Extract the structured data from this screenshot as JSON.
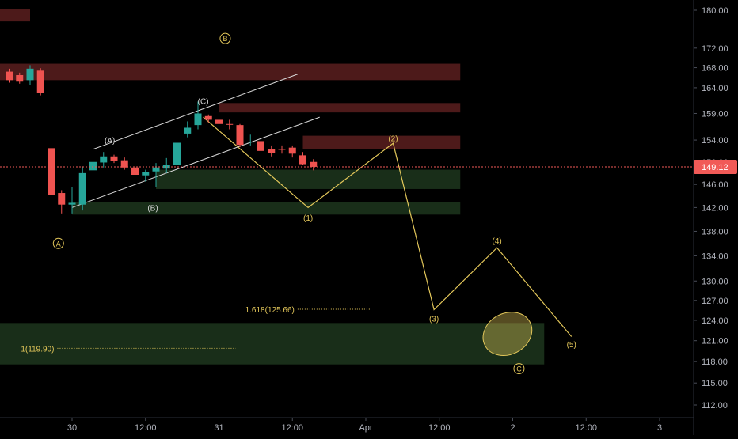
{
  "chart_data": {
    "type": "candlestick",
    "colors": {
      "background": "#000000",
      "up": "#26a69a",
      "down": "#ef5350",
      "wave": "#e3c75a",
      "trend": "#d8d8d8",
      "supply_zone": "#5a1f1f",
      "demand_zone": "#1d361d",
      "price_tag": "#f15a57",
      "axis_text": "#b2b5be"
    },
    "y_axis": {
      "min": 110.5,
      "max": 182,
      "ticks": [
        "112.00",
        "115.00",
        "118.00",
        "121.00",
        "124.00",
        "127.00",
        "130.00",
        "134.00",
        "138.00",
        "142.00",
        "146.00",
        "150.00",
        "154.00",
        "159.00",
        "164.00",
        "168.00",
        "172.00",
        "180.00"
      ]
    },
    "x_axis": {
      "ticks": [
        {
          "label": "30",
          "t": 6
        },
        {
          "label": "12:00",
          "t": 13
        },
        {
          "label": "31",
          "t": 20
        },
        {
          "label": "12:00",
          "t": 27
        },
        {
          "label": "Apr",
          "t": 34
        },
        {
          "label": "12:00",
          "t": 41
        },
        {
          "label": "2",
          "t": 48
        },
        {
          "label": "12:00",
          "t": 55
        },
        {
          "label": "3",
          "t": 62
        }
      ]
    },
    "current_price": "149.12",
    "candles": [
      {
        "t": 0,
        "o": 167.2,
        "h": 167.8,
        "l": 165.0,
        "c": 165.5
      },
      {
        "t": 1,
        "o": 166.5,
        "h": 167.0,
        "l": 164.8,
        "c": 165.2
      },
      {
        "t": 2,
        "o": 165.5,
        "h": 168.5,
        "l": 164.5,
        "c": 167.8
      },
      {
        "t": 3,
        "o": 167.4,
        "h": 167.9,
        "l": 162.5,
        "c": 163.0
      },
      {
        "t": 4,
        "o": 152.5,
        "h": 152.7,
        "l": 143.5,
        "c": 144.2
      },
      {
        "t": 5,
        "o": 144.5,
        "h": 145.0,
        "l": 141.0,
        "c": 142.5
      },
      {
        "t": 6,
        "o": 142.5,
        "h": 145.5,
        "l": 141.0,
        "c": 142.8
      },
      {
        "t": 7,
        "o": 142.5,
        "h": 149.2,
        "l": 141.5,
        "c": 148.0
      },
      {
        "t": 8,
        "o": 148.5,
        "h": 150.2,
        "l": 148.0,
        "c": 150.0
      },
      {
        "t": 9,
        "o": 149.9,
        "h": 151.8,
        "l": 149.0,
        "c": 151.0
      },
      {
        "t": 10,
        "o": 151.0,
        "h": 151.3,
        "l": 149.8,
        "c": 150.2
      },
      {
        "t": 11,
        "o": 150.3,
        "h": 150.8,
        "l": 148.6,
        "c": 149.0
      },
      {
        "t": 12,
        "o": 149.0,
        "h": 149.3,
        "l": 147.2,
        "c": 147.7
      },
      {
        "t": 13,
        "o": 147.6,
        "h": 148.6,
        "l": 146.5,
        "c": 148.2
      },
      {
        "t": 14,
        "o": 148.3,
        "h": 149.8,
        "l": 145.5,
        "c": 149.0
      },
      {
        "t": 15,
        "o": 148.8,
        "h": 150.7,
        "l": 148.0,
        "c": 149.4
      },
      {
        "t": 16,
        "o": 149.4,
        "h": 154.5,
        "l": 149.0,
        "c": 153.5
      },
      {
        "t": 17,
        "o": 155.2,
        "h": 157.5,
        "l": 154.5,
        "c": 156.3
      },
      {
        "t": 18,
        "o": 156.8,
        "h": 161.3,
        "l": 156.0,
        "c": 159.0
      },
      {
        "t": 19,
        "o": 158.5,
        "h": 158.8,
        "l": 157.3,
        "c": 157.8
      },
      {
        "t": 20,
        "o": 157.8,
        "h": 158.3,
        "l": 156.6,
        "c": 157.0
      },
      {
        "t": 21,
        "o": 157.0,
        "h": 157.8,
        "l": 156.0,
        "c": 156.9
      },
      {
        "t": 22,
        "o": 156.8,
        "h": 157.0,
        "l": 152.7,
        "c": 153.1
      },
      {
        "t": 23,
        "o": 153.6,
        "h": 155.0,
        "l": 153.0,
        "c": 153.7
      },
      {
        "t": 24,
        "o": 153.8,
        "h": 154.2,
        "l": 151.3,
        "c": 152.0
      },
      {
        "t": 25,
        "o": 152.4,
        "h": 153.0,
        "l": 151.0,
        "c": 151.6
      },
      {
        "t": 26,
        "o": 152.4,
        "h": 153.0,
        "l": 151.5,
        "c": 152.2
      },
      {
        "t": 27,
        "o": 152.6,
        "h": 153.0,
        "l": 150.8,
        "c": 151.5
      },
      {
        "t": 28,
        "o": 151.2,
        "h": 151.8,
        "l": 149.5,
        "c": 149.6
      },
      {
        "t": 29,
        "o": 150.0,
        "h": 150.5,
        "l": 148.5,
        "c": 149.12
      }
    ],
    "zones": [
      {
        "kind": "supply",
        "t0": -2,
        "t1": 2,
        "y0": 177.6,
        "y1": 180.2
      },
      {
        "kind": "supply",
        "t0": -2,
        "t1": 43,
        "y0": 165.5,
        "y1": 168.8
      },
      {
        "kind": "supply",
        "t0": 20,
        "t1": 43,
        "y0": 159.2,
        "y1": 161.0
      },
      {
        "kind": "supply",
        "t0": 28,
        "t1": 43,
        "y0": 152.3,
        "y1": 154.8
      },
      {
        "kind": "demand",
        "t0": 14,
        "t1": 43,
        "y0": 145.2,
        "y1": 148.6
      },
      {
        "kind": "demand",
        "t0": 6,
        "t1": 43,
        "y0": 140.8,
        "y1": 143.0
      },
      {
        "kind": "demand",
        "t0": -2,
        "t1": 51,
        "y0": 117.6,
        "y1": 123.6
      }
    ],
    "trend_lines": [
      {
        "t0": 8,
        "y0": 152.3,
        "t1": 27.5,
        "y1": 166.7
      },
      {
        "t0": 6,
        "y0": 142.0,
        "t1": 29.6,
        "y1": 158.3
      }
    ],
    "wave_path": [
      {
        "t": 18.5,
        "y": 158.3
      },
      {
        "t": 28.5,
        "y": 142.0
      },
      {
        "t": 36.6,
        "y": 153.4
      },
      {
        "t": 40.5,
        "y": 125.6
      },
      {
        "t": 46.5,
        "y": 135.3
      },
      {
        "t": 53.6,
        "y": 121.6
      }
    ],
    "wave_labels": [
      {
        "text": "(A)",
        "t": 9.6,
        "y": 154.0
      },
      {
        "text": "(B)",
        "t": 13.7,
        "y": 142.0
      },
      {
        "text": "(C)",
        "t": 18.5,
        "y": 161.4
      },
      {
        "text": "(1)",
        "t": 28.5,
        "y": 140.3
      },
      {
        "text": "(2)",
        "t": 36.6,
        "y": 154.4
      },
      {
        "text": "(3)",
        "t": 40.5,
        "y": 124.3
      },
      {
        "text": "(4)",
        "t": 46.5,
        "y": 136.5
      },
      {
        "text": "(5)",
        "t": 53.6,
        "y": 120.5
      }
    ],
    "circled_labels": [
      {
        "text": "A",
        "t": 4.7,
        "y": 136.0
      },
      {
        "text": "B",
        "t": 20.6,
        "y": 174.0
      },
      {
        "text": "C",
        "t": 48.6,
        "y": 117.0
      }
    ],
    "fib_levels": [
      {
        "label": "1.618(125.66)",
        "value": 125.66,
        "t0": 27.5,
        "t1": 34.5
      },
      {
        "label": "1(119.90)",
        "value": 119.9,
        "t0": 4.6,
        "t1": 21.6
      }
    ],
    "target_ellipse": {
      "t": 47.5,
      "y": 122.0
    }
  }
}
